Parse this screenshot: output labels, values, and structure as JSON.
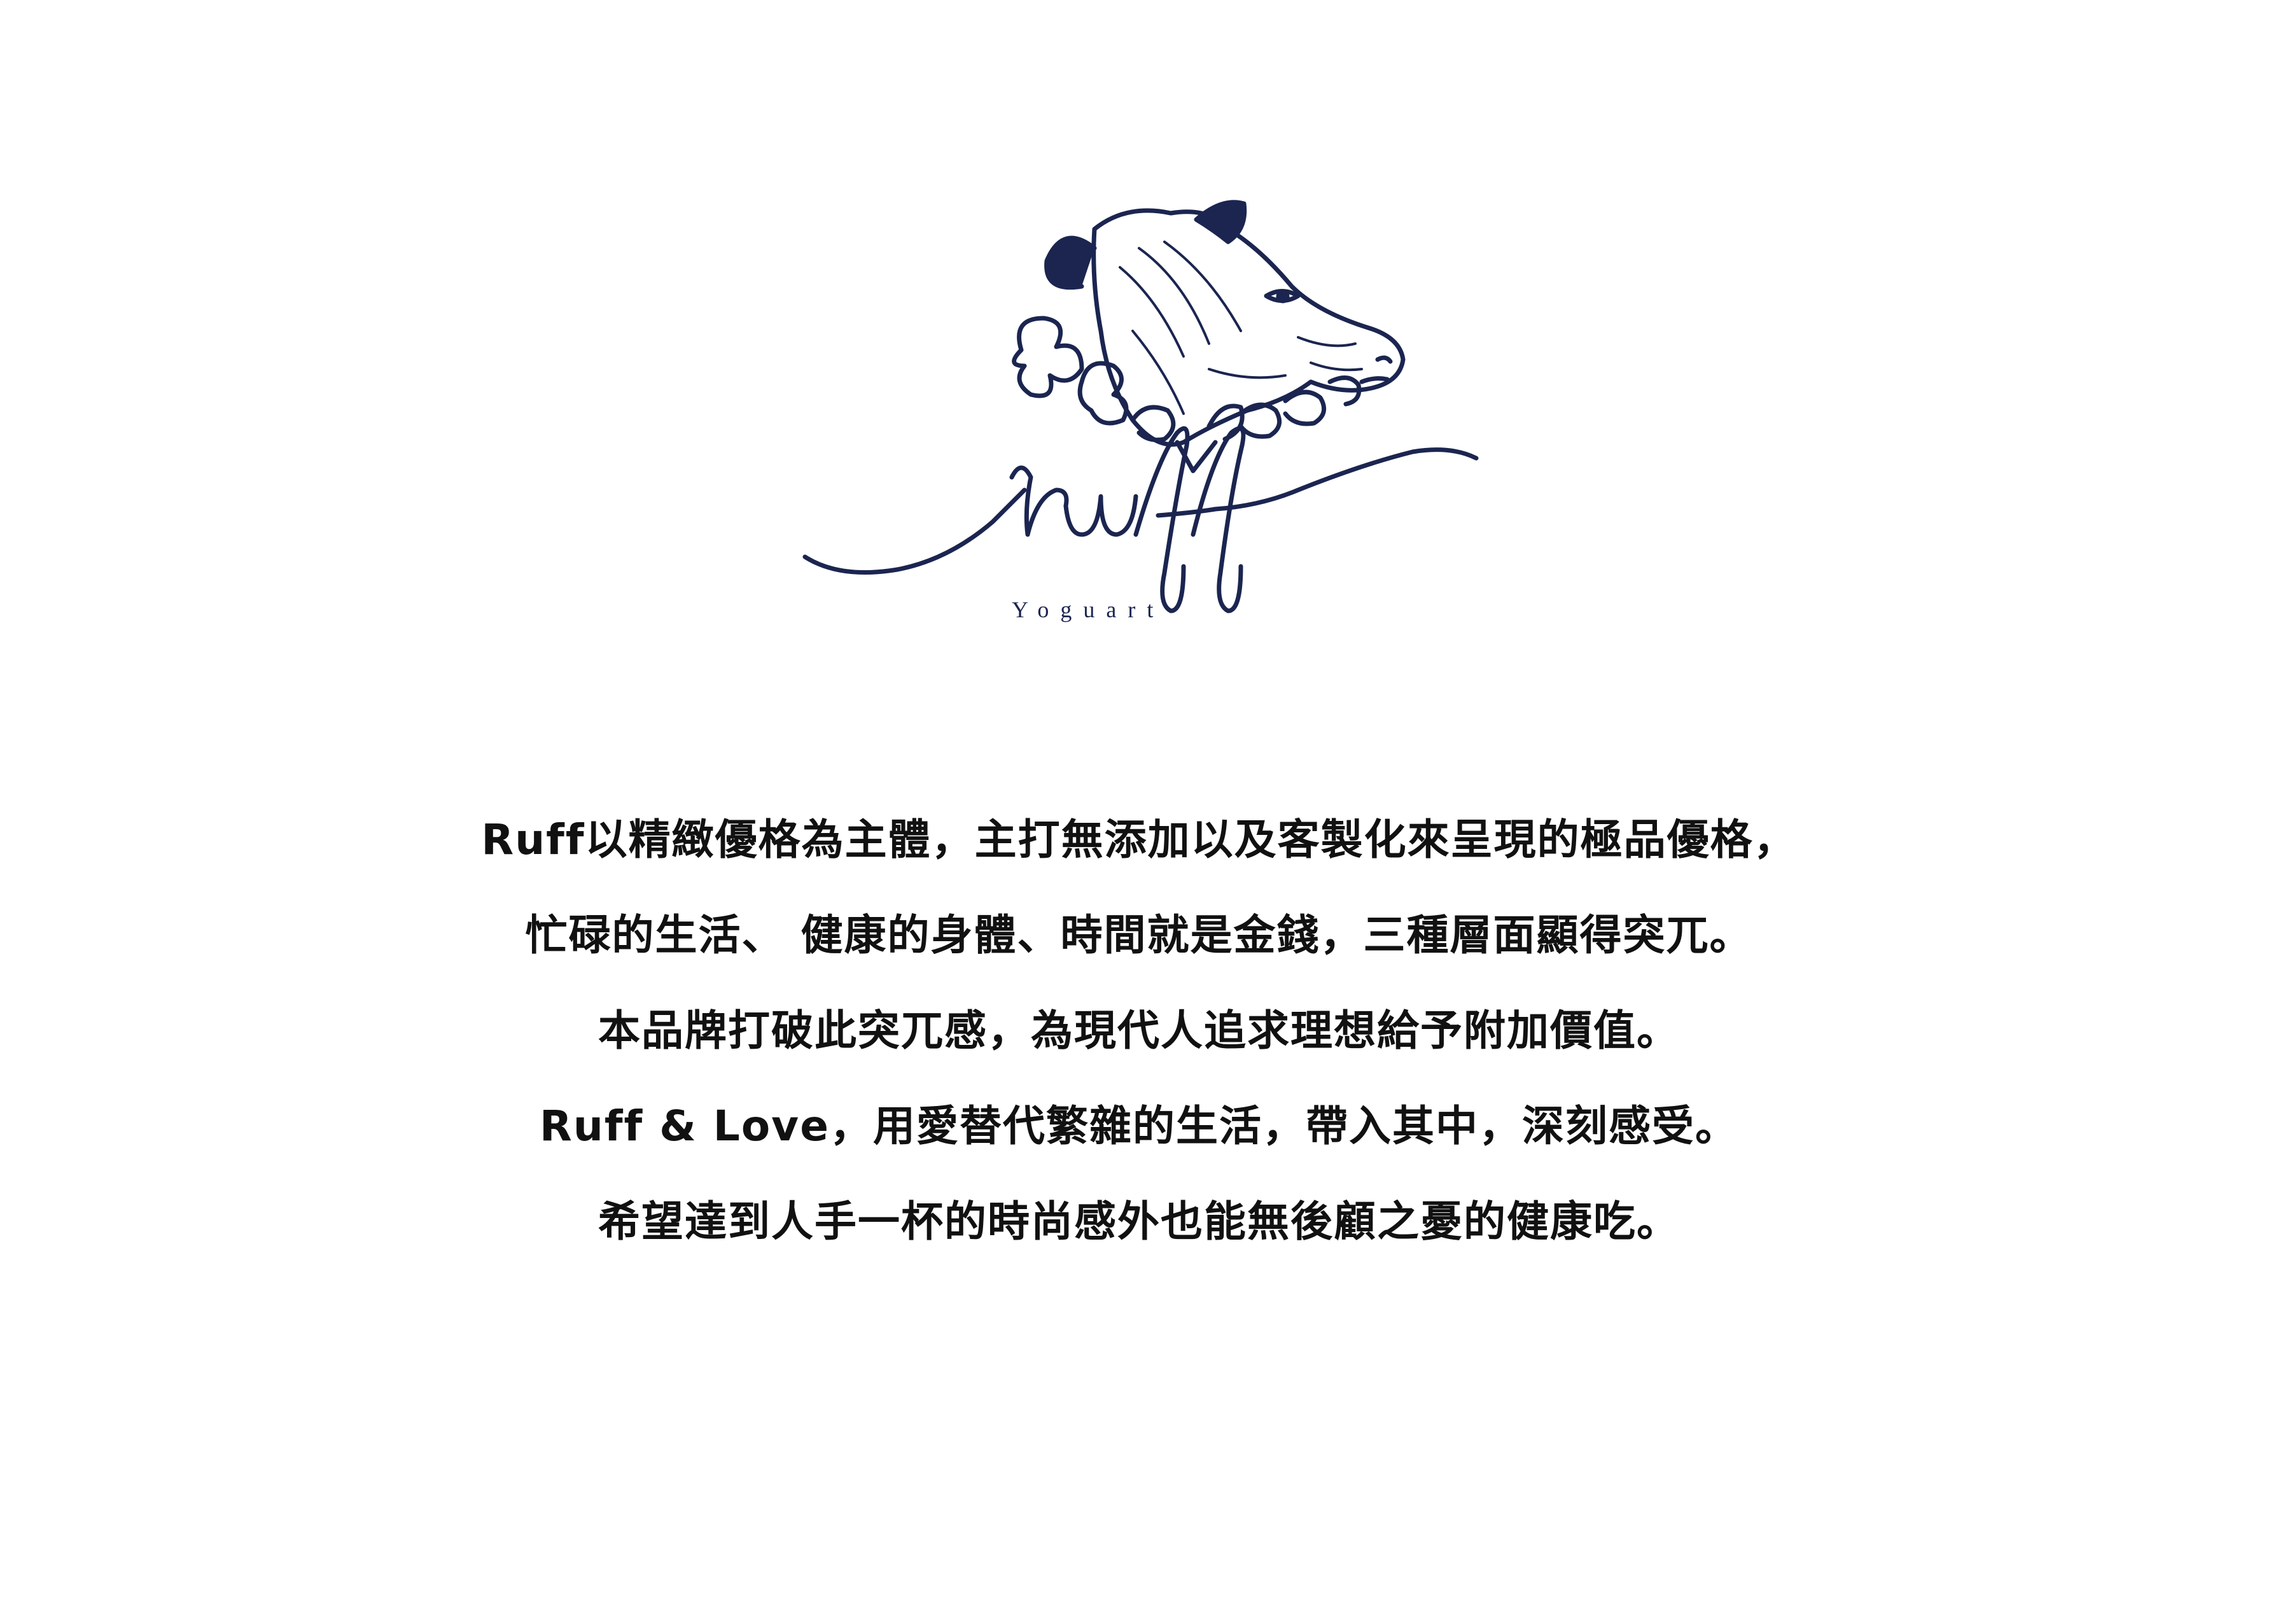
{
  "brand": {
    "name": "ruff",
    "tagline": "Yoguart",
    "mascot_icon": "cow-with-ruff-collar-icon",
    "color": "#1b2550"
  },
  "statement": {
    "lines": [
      "Ruff以精緻優格為主體，主打無添加以及客製化來呈現的極品優格，",
      "忙碌的生活、 健康的身體、時間就是金錢，三種層面顯得突兀。",
      "本品牌打破此突兀感，為現代人追求理想給予附加價值。",
      "Ruff & Love，用愛替代繁雜的生活，帶入其中，深刻感受。",
      "希望達到人手一杯的時尚感外也能無後顧之憂的健康吃。"
    ]
  }
}
